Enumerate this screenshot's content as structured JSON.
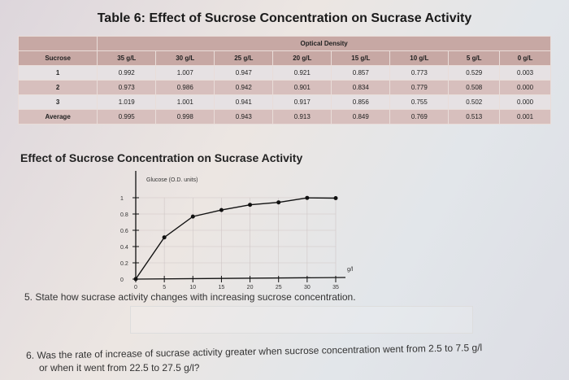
{
  "title": "Table 6: Effect of Sucrose Concentration on Sucrase Activity",
  "table": {
    "group_header": "Optical Density",
    "columns": [
      "Sucrose",
      "35 g/L",
      "30 g/L",
      "25 g/L",
      "20 g/L",
      "15 g/L",
      "10 g/L",
      "5 g/L",
      "0 g/L"
    ],
    "rows": [
      [
        "1",
        "0.992",
        "1.007",
        "0.947",
        "0.921",
        "0.857",
        "0.773",
        "0.529",
        "0.003"
      ],
      [
        "2",
        "0.973",
        "0.986",
        "0.942",
        "0.901",
        "0.834",
        "0.779",
        "0.508",
        "0.000"
      ],
      [
        "3",
        "1.019",
        "1.001",
        "0.941",
        "0.917",
        "0.856",
        "0.755",
        "0.502",
        "0.000"
      ],
      [
        "Average",
        "0.995",
        "0.998",
        "0.943",
        "0.913",
        "0.849",
        "0.769",
        "0.513",
        "0.001"
      ]
    ]
  },
  "chart_title": "Effect of Sucrose Concentration on Sucrase Activity",
  "chart_data": {
    "type": "line",
    "title": "Effect of Sucrose Concentration on Sucrase Activity",
    "ylabel": "Glucose (O.D. units)",
    "xlabel": "g/l",
    "x": [
      0,
      5,
      10,
      15,
      20,
      25,
      30,
      35
    ],
    "y": [
      0.001,
      0.513,
      0.769,
      0.849,
      0.913,
      0.943,
      0.998,
      0.995
    ],
    "xlim": [
      0,
      35
    ],
    "ylim": [
      0,
      1
    ],
    "xticks": [
      "0",
      "5",
      "10",
      "15",
      "20",
      "25",
      "30",
      "35"
    ],
    "yticks": [
      "0",
      "0.2",
      "0.4",
      "0.6",
      "0.8",
      "1"
    ],
    "grid": true
  },
  "questions": {
    "q5": "5. State how sucrase activity changes with increasing sucrose concentration.",
    "q6_line1": "6. Was the rate of increase of sucrase activity greater when sucrose concentration went from 2.5 to 7.5 g/l",
    "q6_line2": "or when it went from 22.5 to 27.5 g/l?"
  }
}
